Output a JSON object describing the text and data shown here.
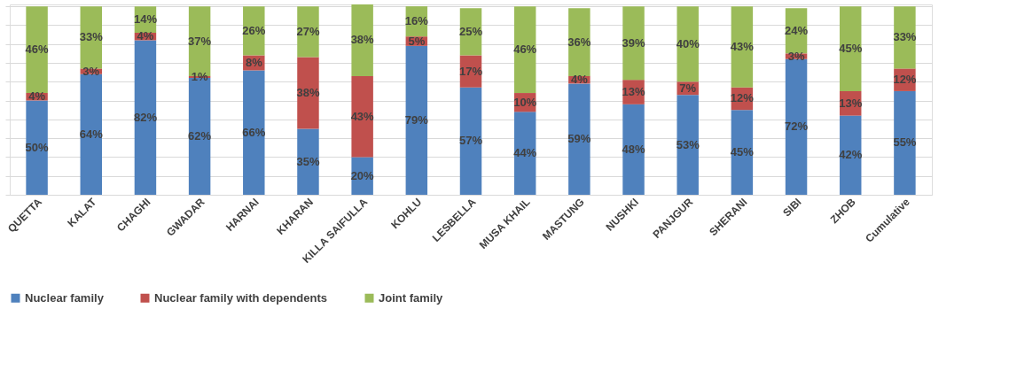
{
  "chart_data": {
    "type": "bar",
    "stacked": true,
    "categories": [
      "QUETTA",
      "KALAT",
      "CHAGHI",
      "GWADAR",
      "HARNAI",
      "KHARAN",
      "KILLA SAIFULLA",
      "KOHLU",
      "LESBELLA",
      "MUSA KHAIL",
      "MASTUNG",
      "NUSHKI",
      "PANJGUR",
      "SHERANI",
      "SIBI",
      "ZHOB",
      "Cumulative"
    ],
    "series": [
      {
        "name": "Nuclear family",
        "color": "#4f81bd",
        "values": [
          50,
          64,
          82,
          62,
          66,
          35,
          20,
          79,
          57,
          44,
          59,
          48,
          53,
          45,
          72,
          42,
          55
        ],
        "value_labels": [
          "50%",
          "64%",
          "82%",
          "62%",
          "66%",
          "35%",
          "20%",
          "79%",
          "57%",
          "44%",
          "59%",
          "48%",
          "53%",
          "45%",
          "72%",
          "42%",
          "55%"
        ]
      },
      {
        "name": "Nuclear family with dependents",
        "color": "#c0504d",
        "values": [
          4,
          3,
          4,
          1,
          8,
          38,
          43,
          5,
          17,
          10,
          4,
          13,
          7,
          12,
          3,
          13,
          12
        ],
        "value_labels": [
          "4%",
          "3%",
          "4%",
          "1%",
          "8%",
          "38%",
          "43%",
          "5%",
          "17%",
          "10%",
          "4%",
          "13%",
          "7%",
          "12%",
          "3%",
          "13%",
          "12%"
        ]
      },
      {
        "name": "Joint family",
        "color": "#9bbb59",
        "values": [
          46,
          33,
          14,
          37,
          26,
          27,
          38,
          16,
          25,
          46,
          36,
          39,
          40,
          43,
          24,
          45,
          33
        ],
        "value_labels": [
          "46%",
          "33%",
          "14%",
          "37%",
          "26%",
          "27%",
          "38%",
          "16%",
          "25%",
          "46%",
          "36%",
          "39%",
          "40%",
          "43%",
          "24%",
          "45%",
          "33%"
        ]
      }
    ],
    "ylim": [
      0,
      101
    ],
    "grid": "y",
    "legend": "bottom",
    "tick_labels": "x"
  }
}
